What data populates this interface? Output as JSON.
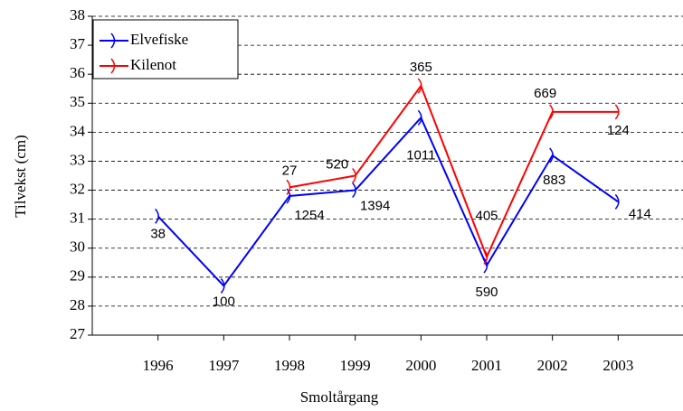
{
  "chart_data": {
    "type": "line",
    "x_label": "Smoltårgang",
    "y_label": "Tilvekst (cm)",
    "x": [
      1996,
      1997,
      1998,
      1999,
      2000,
      2001,
      2002,
      2003
    ],
    "xlim": [
      1995,
      2004
    ],
    "xticks": [
      1996,
      1997,
      1998,
      1999,
      2000,
      2001,
      2002,
      2003
    ],
    "ylim": [
      27,
      38
    ],
    "yticks": [
      27,
      28,
      29,
      30,
      31,
      32,
      33,
      34,
      35,
      36,
      37,
      38
    ],
    "grid": true,
    "legend": "upper left",
    "series": [
      {
        "name": "Elvefiske",
        "color": "#0000ff",
        "values": [
          31.1,
          28.7,
          31.8,
          32.0,
          34.5,
          29.4,
          33.2,
          31.6
        ],
        "labels": [
          "38",
          "100",
          "1254",
          "1394",
          "1011",
          "590",
          "883",
          "414"
        ]
      },
      {
        "name": "Kilenot",
        "color": "#ff0000",
        "values": [
          null,
          null,
          32.1,
          32.5,
          35.6,
          29.7,
          34.7,
          34.7
        ],
        "labels": [
          null,
          null,
          "27",
          "520",
          "365",
          "405",
          "669",
          "124"
        ]
      }
    ]
  }
}
